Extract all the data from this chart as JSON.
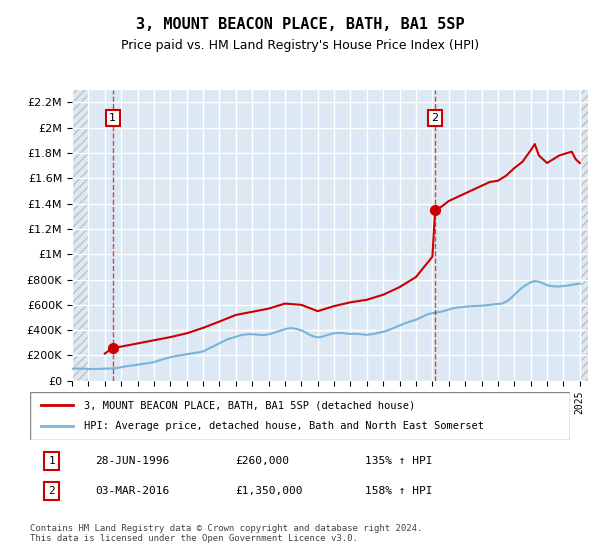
{
  "title": "3, MOUNT BEACON PLACE, BATH, BA1 5SP",
  "subtitle": "Price paid vs. HM Land Registry's House Price Index (HPI)",
  "ylim": [
    0,
    2300000
  ],
  "yticks": [
    0,
    200000,
    400000,
    600000,
    800000,
    1000000,
    1200000,
    1400000,
    1600000,
    1800000,
    2000000,
    2200000
  ],
  "ytick_labels": [
    "£0",
    "£200K",
    "£400K",
    "£600K",
    "£800K",
    "£1M",
    "£1.2M",
    "£1.4M",
    "£1.6M",
    "£1.8M",
    "£2M",
    "£2.2M"
  ],
  "xlim_start": 1994.0,
  "xlim_end": 2025.5,
  "plot_bg_color": "#dce9f5",
  "hatch_color": "#b0b0b0",
  "grid_color": "#ffffff",
  "sale1_date": 1996.49,
  "sale1_price": 260000,
  "sale1_label": "1",
  "sale2_date": 2016.17,
  "sale2_price": 1350000,
  "sale2_label": "2",
  "hpi_line_color": "#7ab3d9",
  "price_line_color": "#cc0000",
  "legend_label1": "3, MOUNT BEACON PLACE, BATH, BA1 5SP (detached house)",
  "legend_label2": "HPI: Average price, detached house, Bath and North East Somerset",
  "annotation1_date": "28-JUN-1996",
  "annotation1_price": "£260,000",
  "annotation1_hpi": "135% ↑ HPI",
  "annotation2_date": "03-MAR-2016",
  "annotation2_price": "£1,350,000",
  "annotation2_hpi": "158% ↑ HPI",
  "footer": "Contains HM Land Registry data © Crown copyright and database right 2024.\nThis data is licensed under the Open Government Licence v3.0.",
  "hpi_data_x": [
    1994.0,
    1994.25,
    1994.5,
    1994.75,
    1995.0,
    1995.25,
    1995.5,
    1995.75,
    1996.0,
    1996.25,
    1996.5,
    1996.75,
    1997.0,
    1997.25,
    1997.5,
    1997.75,
    1998.0,
    1998.25,
    1998.5,
    1998.75,
    1999.0,
    1999.25,
    1999.5,
    1999.75,
    2000.0,
    2000.25,
    2000.5,
    2000.75,
    2001.0,
    2001.25,
    2001.5,
    2001.75,
    2002.0,
    2002.25,
    2002.5,
    2002.75,
    2003.0,
    2003.25,
    2003.5,
    2003.75,
    2004.0,
    2004.25,
    2004.5,
    2004.75,
    2005.0,
    2005.25,
    2005.5,
    2005.75,
    2006.0,
    2006.25,
    2006.5,
    2006.75,
    2007.0,
    2007.25,
    2007.5,
    2007.75,
    2008.0,
    2008.25,
    2008.5,
    2008.75,
    2009.0,
    2009.25,
    2009.5,
    2009.75,
    2010.0,
    2010.25,
    2010.5,
    2010.75,
    2011.0,
    2011.25,
    2011.5,
    2011.75,
    2012.0,
    2012.25,
    2012.5,
    2012.75,
    2013.0,
    2013.25,
    2013.5,
    2013.75,
    2014.0,
    2014.25,
    2014.5,
    2014.75,
    2015.0,
    2015.25,
    2015.5,
    2015.75,
    2016.0,
    2016.25,
    2016.5,
    2016.75,
    2017.0,
    2017.25,
    2017.5,
    2017.75,
    2018.0,
    2018.25,
    2018.5,
    2018.75,
    2019.0,
    2019.25,
    2019.5,
    2019.75,
    2020.0,
    2020.25,
    2020.5,
    2020.75,
    2021.0,
    2021.25,
    2021.5,
    2021.75,
    2022.0,
    2022.25,
    2022.5,
    2022.75,
    2023.0,
    2023.25,
    2023.5,
    2023.75,
    2024.0,
    2024.25,
    2024.5,
    2024.75,
    2025.0
  ],
  "hpi_data_y": [
    95000,
    96000,
    96500,
    96000,
    94000,
    93000,
    93500,
    95000,
    96000,
    97000,
    98000,
    101000,
    107000,
    113000,
    118000,
    122000,
    127000,
    132000,
    137000,
    141000,
    148000,
    158000,
    168000,
    178000,
    186000,
    193000,
    199000,
    205000,
    210000,
    215000,
    220000,
    225000,
    232000,
    248000,
    265000,
    280000,
    296000,
    313000,
    328000,
    338000,
    348000,
    358000,
    365000,
    368000,
    368000,
    365000,
    363000,
    362000,
    367000,
    376000,
    387000,
    397000,
    408000,
    415000,
    415000,
    408000,
    398000,
    383000,
    365000,
    350000,
    343000,
    348000,
    358000,
    368000,
    375000,
    378000,
    378000,
    373000,
    370000,
    372000,
    370000,
    366000,
    363000,
    367000,
    373000,
    381000,
    387000,
    397000,
    410000,
    423000,
    437000,
    450000,
    462000,
    473000,
    482000,
    497000,
    513000,
    527000,
    535000,
    540000,
    545000,
    552000,
    563000,
    572000,
    578000,
    582000,
    585000,
    588000,
    590000,
    591000,
    593000,
    596000,
    600000,
    604000,
    607000,
    610000,
    625000,
    648000,
    678000,
    710000,
    738000,
    760000,
    778000,
    788000,
    783000,
    770000,
    755000,
    748000,
    745000,
    745000,
    748000,
    752000,
    758000,
    763000,
    768000
  ],
  "price_data_x": [
    1996.0,
    1996.49,
    1997.0,
    1998.0,
    1999.0,
    2000.0,
    2001.0,
    2002.0,
    2003.0,
    2004.0,
    2005.0,
    2006.0,
    2007.0,
    2008.0,
    2009.0,
    2010.0,
    2011.0,
    2012.0,
    2013.0,
    2014.0,
    2015.0,
    2015.5,
    2016.0,
    2016.17,
    2016.5,
    2017.0,
    2018.0,
    2018.5,
    2019.0,
    2019.5,
    2020.0,
    2020.5,
    2021.0,
    2021.5,
    2022.0,
    2022.25,
    2022.5,
    2022.75,
    2023.0,
    2023.25,
    2023.5,
    2023.75,
    2024.0,
    2024.25,
    2024.5,
    2024.75,
    2025.0
  ],
  "price_data_y": [
    215000,
    260000,
    270000,
    295000,
    320000,
    345000,
    375000,
    418000,
    468000,
    520000,
    545000,
    570000,
    610000,
    600000,
    550000,
    590000,
    620000,
    640000,
    680000,
    740000,
    820000,
    900000,
    980000,
    1350000,
    1370000,
    1420000,
    1480000,
    1510000,
    1540000,
    1570000,
    1580000,
    1620000,
    1680000,
    1730000,
    1820000,
    1870000,
    1780000,
    1750000,
    1720000,
    1740000,
    1760000,
    1780000,
    1790000,
    1800000,
    1810000,
    1750000,
    1720000
  ]
}
